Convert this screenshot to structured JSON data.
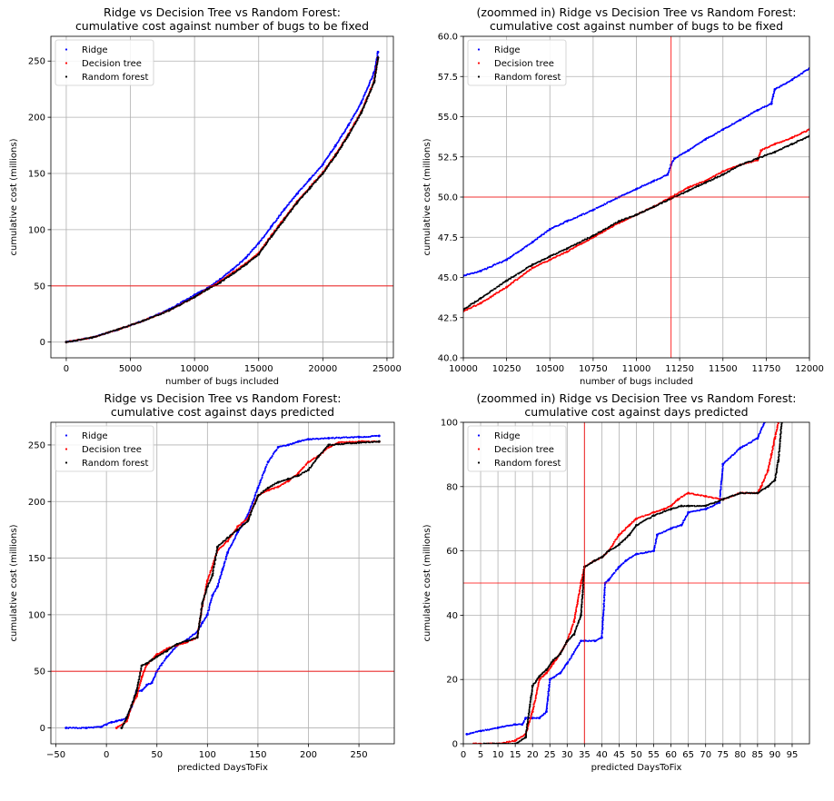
{
  "chart_data": [
    {
      "type": "scatter",
      "title_line1": "Ridge vs Decision Tree vs Random Forest:",
      "title_line2": "cumulative cost against number of bugs to be fixed",
      "xlabel": "number of bugs included",
      "ylabel": "cumulative cost (millions)",
      "xlim": [
        -1200,
        25500
      ],
      "ylim": [
        -14,
        272
      ],
      "xticks": [
        0,
        5000,
        10000,
        15000,
        20000,
        25000
      ],
      "xtick_labels": [
        "0",
        "5000",
        "10000",
        "15000",
        "20000",
        "25000"
      ],
      "yticks": [
        0,
        50,
        100,
        150,
        200,
        250
      ],
      "ytick_labels": [
        "0",
        "50",
        "100",
        "150",
        "200",
        "250"
      ],
      "grid": true,
      "legend_position": "top-left",
      "hlines": [
        50
      ],
      "vlines": [],
      "series": [
        {
          "name": "Ridge",
          "color": "#0000ff",
          "x": [
            0,
            2000,
            4000,
            6000,
            8000,
            10000,
            11000,
            12000,
            13000,
            14000,
            15000,
            16000,
            17000,
            18000,
            19000,
            20000,
            21000,
            22000,
            23000,
            24000,
            24300
          ],
          "y": [
            0,
            4,
            11,
            19,
            29,
            42,
            48,
            56,
            65,
            75,
            88,
            103,
            118,
            132,
            145,
            158,
            175,
            193,
            213,
            240,
            258
          ]
        },
        {
          "name": "Decision tree",
          "color": "#ff0000",
          "x": [
            0,
            2000,
            4000,
            6000,
            8000,
            10000,
            11000,
            12000,
            13000,
            14000,
            15000,
            16000,
            17000,
            18000,
            19000,
            20000,
            21000,
            22000,
            23000,
            24000,
            24300
          ],
          "y": [
            0,
            4,
            11,
            19,
            28,
            40,
            47,
            54,
            62,
            70,
            79,
            95,
            110,
            125,
            138,
            151,
            167,
            185,
            205,
            232,
            253
          ]
        },
        {
          "name": "Random forest",
          "color": "#000000",
          "x": [
            0,
            2000,
            4000,
            6000,
            8000,
            10000,
            11000,
            12000,
            13000,
            14000,
            15000,
            16000,
            17000,
            18000,
            19000,
            20000,
            21000,
            22000,
            23000,
            24000,
            24300
          ],
          "y": [
            0,
            4,
            11,
            19,
            28,
            40,
            47,
            53,
            61,
            69,
            78,
            94,
            109,
            124,
            137,
            150,
            166,
            184,
            204,
            231,
            253
          ]
        }
      ]
    },
    {
      "type": "scatter",
      "title_line1": "(zoommed in) Ridge vs Decision Tree vs Random Forest:",
      "title_line2": "cumulative cost against number of bugs to be fixed",
      "xlabel": "number of bugs included",
      "ylabel": "cumulative cost (millions)",
      "xlim": [
        10000,
        12000
      ],
      "ylim": [
        40,
        60
      ],
      "xticks": [
        10000,
        10250,
        10500,
        10750,
        11000,
        11250,
        11500,
        11750,
        12000
      ],
      "xtick_labels": [
        "10000",
        "10250",
        "10500",
        "10750",
        "11000",
        "11250",
        "11500",
        "11750",
        "12000"
      ],
      "yticks": [
        40,
        42.5,
        45,
        47.5,
        50,
        52.5,
        55,
        57.5,
        60
      ],
      "ytick_labels": [
        "40.0",
        "42.5",
        "45.0",
        "47.5",
        "50.0",
        "52.5",
        "55.0",
        "57.5",
        "60.0"
      ],
      "grid": true,
      "legend_position": "top-left",
      "hlines": [
        50
      ],
      "vlines": [
        11200
      ],
      "series": [
        {
          "name": "Ridge",
          "color": "#0000ff",
          "x": [
            10000,
            10100,
            10250,
            10400,
            10500,
            10600,
            10750,
            10900,
            11000,
            11100,
            11180,
            11200,
            11220,
            11300,
            11400,
            11500,
            11600,
            11700,
            11780,
            11800,
            11900,
            12000
          ],
          "y": [
            45.1,
            45.4,
            46.1,
            47.2,
            48.0,
            48.5,
            49.2,
            50.0,
            50.5,
            51.0,
            51.4,
            52.0,
            52.4,
            52.9,
            53.6,
            54.2,
            54.8,
            55.4,
            55.8,
            56.7,
            57.3,
            58.0
          ]
        },
        {
          "name": "Decision tree",
          "color": "#ff0000",
          "x": [
            10000,
            10100,
            10250,
            10400,
            10500,
            10600,
            10750,
            10900,
            11000,
            11100,
            11200,
            11300,
            11400,
            11500,
            11600,
            11700,
            11720,
            11800,
            11900,
            12000
          ],
          "y": [
            42.9,
            43.4,
            44.4,
            45.6,
            46.1,
            46.6,
            47.5,
            48.4,
            48.9,
            49.4,
            50.0,
            50.6,
            51.0,
            51.6,
            52.0,
            52.3,
            52.9,
            53.3,
            53.7,
            54.2
          ]
        },
        {
          "name": "Random forest",
          "color": "#000000",
          "x": [
            10000,
            10100,
            10250,
            10400,
            10500,
            10600,
            10750,
            10900,
            11000,
            11100,
            11200,
            11300,
            11400,
            11500,
            11600,
            11700,
            11800,
            11900,
            12000
          ],
          "y": [
            43.0,
            43.7,
            44.8,
            45.8,
            46.3,
            46.8,
            47.6,
            48.5,
            48.9,
            49.4,
            49.9,
            50.4,
            50.9,
            51.4,
            52.0,
            52.4,
            52.8,
            53.3,
            53.8
          ]
        }
      ]
    },
    {
      "type": "scatter",
      "title_line1": "Ridge vs Decision Tree vs Random Forest:",
      "title_line2": "cumulative cost against days predicted",
      "xlabel": "predicted DaysToFix",
      "ylabel": "cumulative cost (millions)",
      "xlim": [
        -55,
        285
      ],
      "ylim": [
        -14,
        270
      ],
      "xticks": [
        -50,
        0,
        50,
        100,
        150,
        200,
        250
      ],
      "xtick_labels": [
        "−50",
        "0",
        "50",
        "100",
        "150",
        "200",
        "250"
      ],
      "yticks": [
        0,
        50,
        100,
        150,
        200,
        250
      ],
      "ytick_labels": [
        "0",
        "50",
        "100",
        "150",
        "200",
        "250"
      ],
      "grid": true,
      "legend_position": "top-left",
      "hlines": [
        50
      ],
      "vlines": [],
      "series": [
        {
          "name": "Ridge",
          "color": "#0000ff",
          "x": [
            -40,
            -20,
            -5,
            0,
            5,
            10,
            15,
            20,
            25,
            30,
            35,
            40,
            45,
            50,
            60,
            70,
            80,
            90,
            95,
            100,
            105,
            110,
            115,
            120,
            130,
            140,
            150,
            160,
            170,
            180,
            190,
            200,
            220,
            250,
            270
          ],
          "y": [
            0,
            0,
            1,
            3,
            5,
            6,
            7,
            9,
            19,
            33,
            33,
            38,
            40,
            50,
            63,
            73,
            78,
            85,
            93,
            100,
            117,
            125,
            140,
            155,
            173,
            188,
            212,
            235,
            248,
            250,
            253,
            255,
            256,
            257,
            258
          ]
        },
        {
          "name": "Decision tree",
          "color": "#ff0000",
          "x": [
            10,
            20,
            25,
            30,
            35,
            40,
            45,
            50,
            55,
            60,
            70,
            80,
            90,
            95,
            100,
            110,
            120,
            130,
            140,
            150,
            160,
            170,
            180,
            190,
            200,
            210,
            220,
            230,
            250,
            270
          ],
          "y": [
            0,
            6,
            20,
            28,
            45,
            56,
            60,
            65,
            67,
            70,
            73,
            76,
            80,
            108,
            130,
            157,
            165,
            178,
            185,
            205,
            210,
            213,
            218,
            225,
            235,
            240,
            248,
            252,
            253,
            253
          ]
        },
        {
          "name": "Random forest",
          "color": "#000000",
          "x": [
            15,
            20,
            25,
            30,
            35,
            40,
            45,
            50,
            60,
            70,
            80,
            90,
            95,
            100,
            105,
            110,
            120,
            130,
            140,
            150,
            160,
            170,
            180,
            190,
            200,
            210,
            220,
            250,
            270
          ],
          "y": [
            0,
            9,
            20,
            33,
            55,
            57,
            60,
            63,
            68,
            74,
            77,
            80,
            110,
            125,
            135,
            160,
            168,
            175,
            183,
            205,
            212,
            217,
            220,
            223,
            228,
            240,
            250,
            252,
            253
          ]
        }
      ]
    },
    {
      "type": "scatter",
      "title_line1": "(zoommed in) Ridge vs Decision Tree vs Random Forest:",
      "title_line2": "cumulative cost against days predicted",
      "xlabel": "predicted DaysToFix",
      "ylabel": "cumulative cost (millions)",
      "xlim": [
        0,
        100
      ],
      "ylim": [
        0,
        100
      ],
      "xticks": [
        0,
        5,
        10,
        15,
        20,
        25,
        30,
        35,
        40,
        45,
        50,
        55,
        60,
        65,
        70,
        75,
        80,
        85,
        90,
        95
      ],
      "xtick_labels": [
        "0",
        "5",
        "10",
        "15",
        "20",
        "25",
        "30",
        "35",
        "40",
        "45",
        "50",
        "55",
        "60",
        "65",
        "70",
        "75",
        "80",
        "85",
        "90",
        "95"
      ],
      "yticks": [
        0,
        20,
        40,
        60,
        80,
        100
      ],
      "ytick_labels": [
        "0",
        "20",
        "40",
        "60",
        "80",
        "100"
      ],
      "grid": true,
      "legend_position": "top-left",
      "hlines": [
        50
      ],
      "vlines": [
        35
      ],
      "series": [
        {
          "name": "Ridge",
          "color": "#0000ff",
          "x": [
            1,
            5,
            10,
            15,
            17,
            18,
            20,
            22,
            24,
            25,
            28,
            30,
            34,
            35,
            38,
            40,
            41,
            42,
            45,
            47,
            50,
            55,
            56,
            60,
            63,
            65,
            70,
            74,
            75,
            80,
            85,
            87
          ],
          "y": [
            3,
            4,
            5,
            6,
            6,
            8,
            8,
            8,
            10,
            20,
            22,
            25,
            32,
            32,
            32,
            33,
            50,
            51,
            55,
            57,
            59,
            60,
            65,
            67,
            68,
            72,
            73,
            75,
            87,
            92,
            95,
            100
          ]
        },
        {
          "name": "Decision tree",
          "color": "#ff0000",
          "x": [
            3,
            10,
            15,
            18,
            20,
            22,
            24,
            26,
            28,
            30,
            32,
            34,
            35,
            38,
            40,
            42,
            45,
            48,
            50,
            55,
            58,
            60,
            62,
            65,
            70,
            75,
            80,
            85,
            86,
            88,
            89,
            90,
            91
          ],
          "y": [
            0,
            0,
            1,
            3,
            10,
            20,
            22,
            25,
            28,
            32,
            38,
            50,
            55,
            57,
            58,
            60,
            65,
            68,
            70,
            72,
            73,
            74,
            76,
            78,
            77,
            76,
            78,
            78,
            80,
            85,
            90,
            95,
            100
          ]
        },
        {
          "name": "Random forest",
          "color": "#000000",
          "x": [
            6,
            15,
            18,
            20,
            22,
            24,
            26,
            28,
            30,
            32,
            34,
            35,
            38,
            40,
            42,
            45,
            48,
            50,
            55,
            60,
            63,
            65,
            70,
            75,
            80,
            85,
            88,
            90,
            91,
            92
          ],
          "y": [
            0,
            0,
            2,
            18,
            21,
            23,
            26,
            28,
            32,
            34,
            40,
            55,
            57,
            58,
            60,
            62,
            65,
            68,
            71,
            73,
            74,
            74,
            74,
            76,
            78,
            78,
            80,
            82,
            88,
            100
          ]
        }
      ]
    }
  ]
}
